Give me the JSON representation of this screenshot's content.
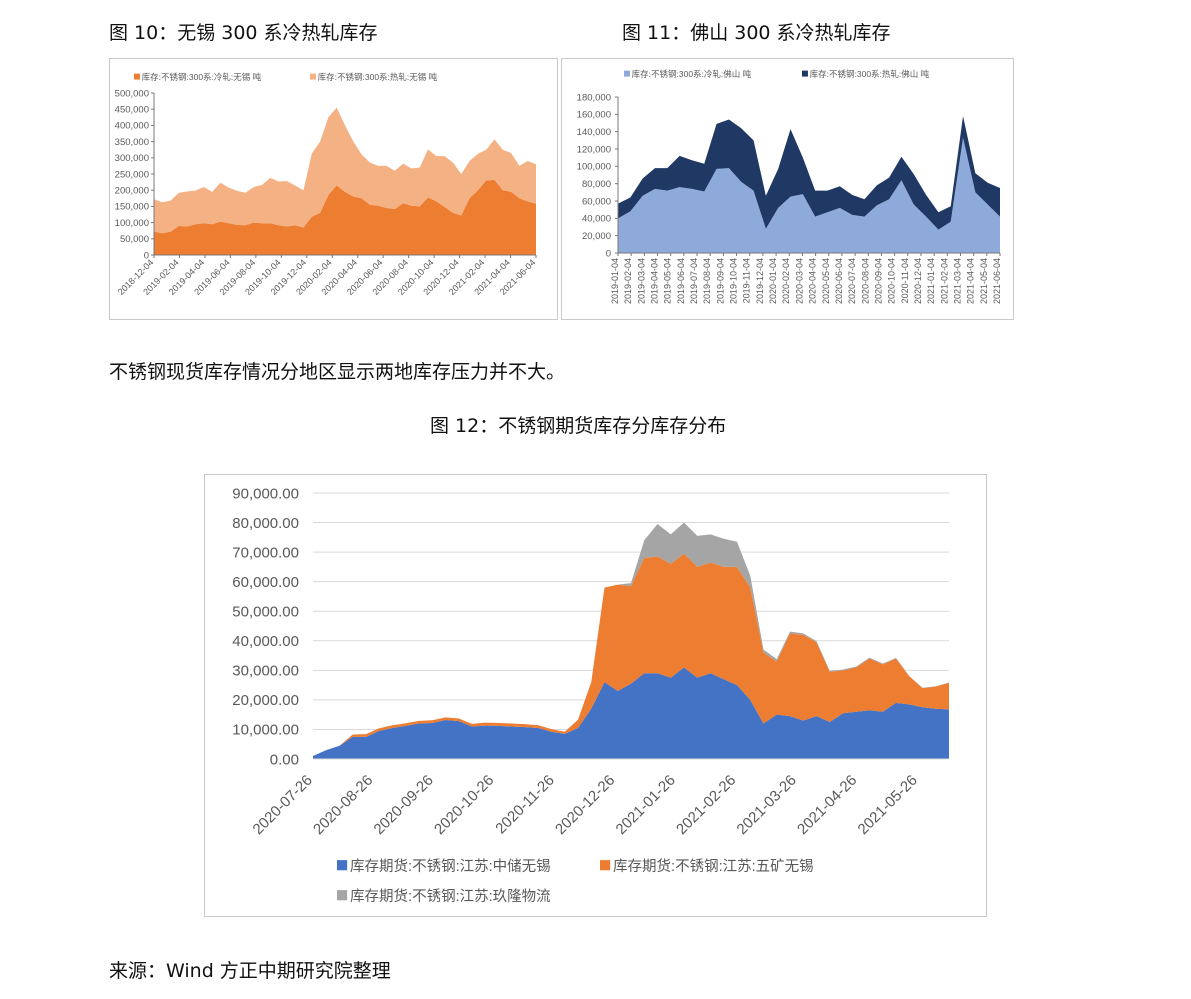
{
  "captions": {
    "fig10": "图 10：无锡 300 系冷热轧库存",
    "fig11": "图 11：佛山 300 系冷热轧库存",
    "fig12": "图 12：不锈钢期货库存分库存分布"
  },
  "paragraph": "不锈钢现货库存情况分地区显示两地库存压力并不大。",
  "source": "来源：Wind  方正中期研究院整理",
  "chart_data": [
    {
      "id": "fig10",
      "type": "area",
      "stacked": true,
      "title": "无锡 300 系冷热轧库存",
      "xlabel": "",
      "ylabel": "",
      "ylim": [
        0,
        500000
      ],
      "yticks": [
        "0",
        "50,000",
        "100,000",
        "150,000",
        "200,000",
        "250,000",
        "300,000",
        "350,000",
        "400,000",
        "450,000",
        "500,000"
      ],
      "xticks": [
        "2018-12-04",
        "2019-02-04",
        "2019-04-04",
        "2019-06-04",
        "2019-08-04",
        "2019-10-04",
        "2019-12-04",
        "2020-02-04",
        "2020-04-04",
        "2020-06-04",
        "2020-08-04",
        "2020-10-04",
        "2020-12-04",
        "2021-02-04",
        "2021-04-04",
        "2021-06-04"
      ],
      "grid": false,
      "legend_position": "top",
      "colors": [
        "#ed7d31",
        "#f4b183"
      ],
      "series": [
        {
          "name": "库存:不锈钢:300系:冷轧:无锡 吨",
          "values": [
            72000,
            67000,
            72000,
            90000,
            88000,
            95000,
            98000,
            95000,
            103000,
            98000,
            93000,
            92000,
            100000,
            98000,
            98000,
            92000,
            88000,
            92000,
            85000,
            118000,
            130000,
            185000,
            215000,
            195000,
            180000,
            175000,
            155000,
            152000,
            145000,
            142000,
            160000,
            152000,
            150000,
            178000,
            165000,
            148000,
            130000,
            122000,
            175000,
            200000,
            230000,
            232000,
            200000,
            195000,
            175000,
            165000,
            158000
          ]
        },
        {
          "name": "库存:不锈钢:300系:热轧:无锡 吨",
          "values": [
            100000,
            96000,
            96000,
            102000,
            108000,
            104000,
            112000,
            100000,
            120000,
            110000,
            105000,
            100000,
            110000,
            118000,
            140000,
            135000,
            140000,
            122000,
            115000,
            195000,
            220000,
            240000,
            240000,
            205000,
            170000,
            135000,
            130000,
            123000,
            130000,
            118000,
            122000,
            115000,
            120000,
            148000,
            140000,
            157000,
            155000,
            128000,
            115000,
            112000,
            95000,
            125000,
            125000,
            120000,
            100000,
            125000,
            122000
          ]
        }
      ]
    },
    {
      "id": "fig11",
      "type": "area",
      "stacked": true,
      "title": "佛山 300 系冷热轧库存",
      "xlabel": "",
      "ylabel": "",
      "ylim": [
        0,
        180000
      ],
      "yticks": [
        "0",
        "20,000",
        "40,000",
        "60,000",
        "80,000",
        "100,000",
        "120,000",
        "140,000",
        "160,000",
        "180,000"
      ],
      "xticks": [
        "2019-01-04",
        "2019-02-04",
        "2019-03-04",
        "2019-04-04",
        "2019-05-04",
        "2019-06-04",
        "2019-07-04",
        "2019-08-04",
        "2019-09-04",
        "2019-10-04",
        "2019-11-04",
        "2019-12-04",
        "2020-01-04",
        "2020-02-04",
        "2020-03-04",
        "2020-04-04",
        "2020-05-04",
        "2020-06-04",
        "2020-07-04",
        "2020-08-04",
        "2020-09-04",
        "2020-10-04",
        "2020-11-04",
        "2020-12-04",
        "2021-01-04",
        "2021-02-04",
        "2021-03-04",
        "2021-04-04",
        "2021-05-04",
        "2021-06-04"
      ],
      "grid": false,
      "legend_position": "top",
      "colors": [
        "#8eaadb",
        "#203864"
      ],
      "series": [
        {
          "name": "库存:不锈钢:300系:冷轧:佛山 吨",
          "values": [
            40000,
            48000,
            66000,
            74000,
            72000,
            76000,
            74000,
            71000,
            97000,
            98000,
            82000,
            72000,
            28000,
            52000,
            65000,
            68000,
            42000,
            47000,
            52000,
            44000,
            42000,
            55000,
            62000,
            84000,
            56000,
            42000,
            27000,
            36000,
            133000,
            70000,
            56000,
            42000
          ]
        },
        {
          "name": "库存:不锈钢:300系:热轧:佛山 吨",
          "values": [
            17000,
            16000,
            20000,
            24000,
            26000,
            36000,
            33000,
            32000,
            52000,
            56000,
            62000,
            58000,
            38000,
            45000,
            78000,
            42000,
            30000,
            25000,
            25000,
            23000,
            20000,
            23000,
            25000,
            27000,
            35000,
            25000,
            20000,
            18000,
            25000,
            22000,
            25000,
            33000
          ]
        }
      ]
    },
    {
      "id": "fig12",
      "type": "area",
      "stacked": true,
      "title": "不锈钢期货库存分库存分布",
      "xlabel": "",
      "ylabel": "",
      "ylim": [
        0,
        90000
      ],
      "yticks": [
        "0.00",
        "10,000.00",
        "20,000.00",
        "30,000.00",
        "40,000.00",
        "50,000.00",
        "60,000.00",
        "70,000.00",
        "80,000.00",
        "90,000.00"
      ],
      "xticks": [
        "2020-07-26",
        "2020-08-26",
        "2020-09-26",
        "2020-10-26",
        "2020-11-26",
        "2020-12-26",
        "2021-01-26",
        "2021-02-26",
        "2021-03-26",
        "2021-04-26",
        "2021-05-26"
      ],
      "grid": true,
      "legend_position": "bottom",
      "colors": [
        "#4472c4",
        "#ed7d31",
        "#a5a5a5"
      ],
      "series": [
        {
          "name": "库存期货:不锈钢:江苏:中储无锡",
          "values": [
            1000,
            3000,
            4500,
            7500,
            7500,
            9500,
            10500,
            11200,
            12000,
            12200,
            13200,
            12800,
            11000,
            11300,
            11200,
            11000,
            10800,
            10500,
            9200,
            8500,
            10500,
            17000,
            26000,
            23000,
            25500,
            29000,
            29000,
            27500,
            31000,
            27500,
            29000,
            27000,
            25000,
            20000,
            12000,
            15000,
            14500,
            13000,
            14500,
            12500,
            15500,
            16000,
            16500,
            16000,
            19000,
            18500,
            17500,
            17000,
            16800
          ]
        },
        {
          "name": "库存期货:不锈钢:江苏:五矿无锡",
          "values": [
            0,
            0,
            0,
            800,
            900,
            900,
            900,
            900,
            900,
            900,
            900,
            900,
            900,
            1000,
            1000,
            1000,
            1000,
            900,
            900,
            700,
            2800,
            9000,
            32000,
            36000,
            33000,
            39000,
            39500,
            38500,
            38500,
            37500,
            37500,
            38000,
            40000,
            38000,
            24000,
            18000,
            28000,
            29000,
            25000,
            17000,
            14500,
            15000,
            17500,
            16000,
            15000,
            9500,
            6500,
            7500,
            9000
          ]
        },
        {
          "name": "库存期货:不锈钢:江苏:玖隆物流",
          "values": [
            0,
            0,
            0,
            0,
            0,
            0,
            0,
            0,
            0,
            0,
            0,
            0,
            0,
            0,
            0,
            0,
            0,
            0,
            0,
            0,
            0,
            0,
            0,
            0,
            1000,
            6000,
            11000,
            10000,
            10500,
            10500,
            9500,
            9500,
            8500,
            4000,
            1000,
            800,
            600,
            500,
            400,
            300,
            300,
            300,
            300,
            300,
            200,
            100,
            100,
            100,
            100
          ]
        }
      ]
    }
  ]
}
